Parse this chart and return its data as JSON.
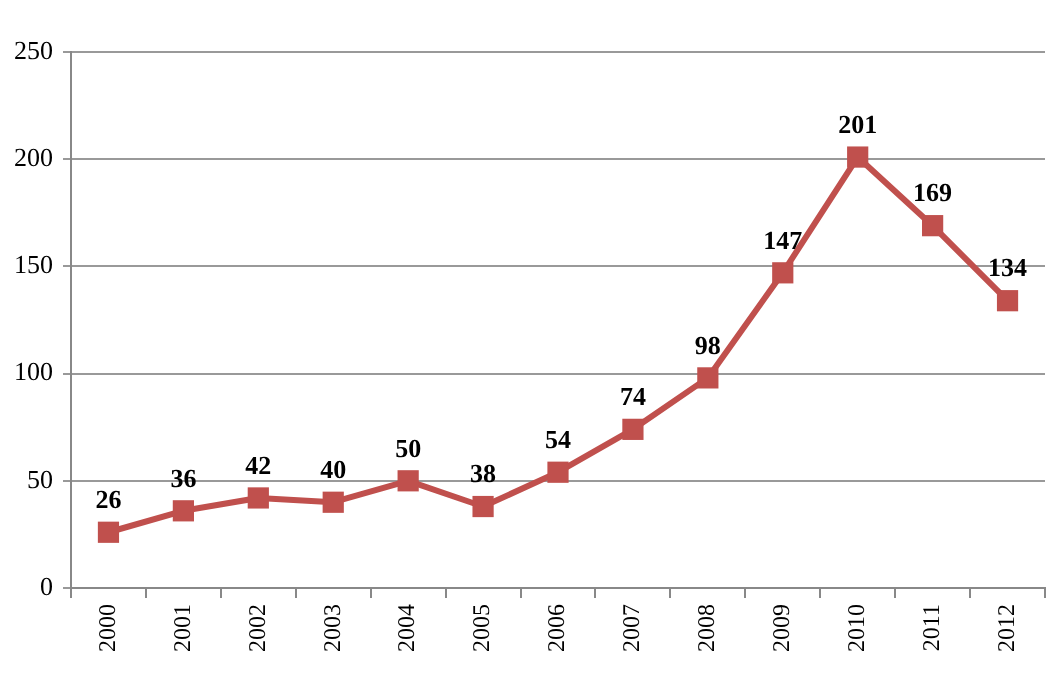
{
  "chart_data": {
    "type": "line",
    "categories": [
      "2000",
      "2001",
      "2002",
      "2003",
      "2004",
      "2005",
      "2006",
      "2007",
      "2008",
      "2009",
      "2010",
      "2011",
      "2012"
    ],
    "values": [
      26,
      36,
      42,
      40,
      50,
      38,
      54,
      74,
      98,
      147,
      201,
      169,
      134
    ],
    "color": "#c0504d",
    "ylim": [
      0,
      250
    ],
    "yticks": [
      0,
      50,
      100,
      150,
      200,
      250
    ],
    "grid": "y",
    "marker": "square",
    "line_style": "solid",
    "data_labels": true
  }
}
